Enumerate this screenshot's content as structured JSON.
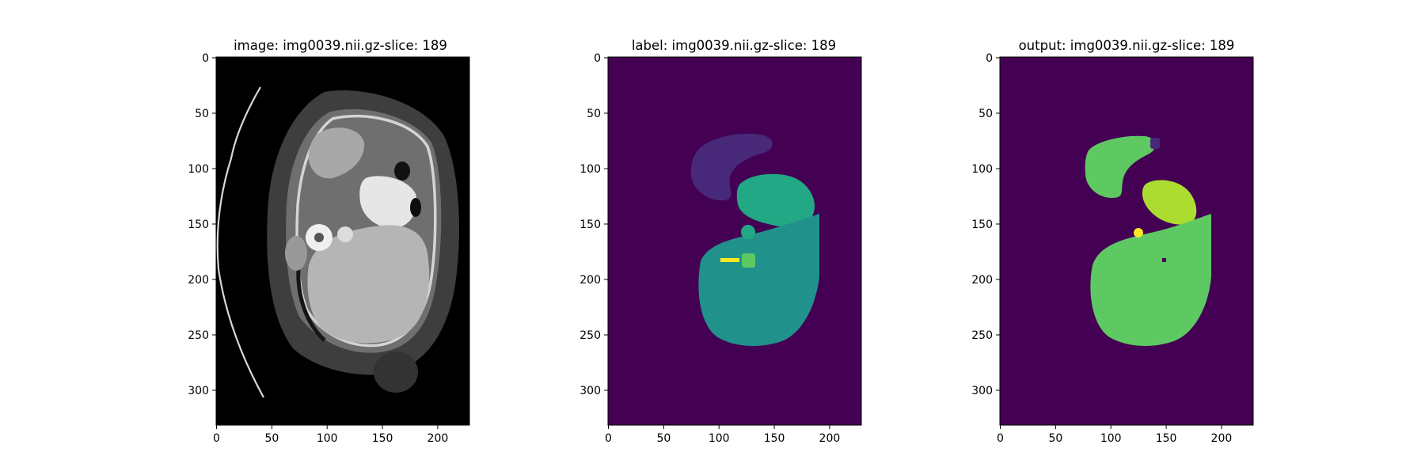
{
  "figure": {
    "panels": [
      {
        "id": "image",
        "title": "image: img0039.nii.gz-slice: 189",
        "background": "#000000",
        "x_ticks": [
          "0",
          "50",
          "100",
          "150",
          "200"
        ],
        "y_ticks": [
          "0",
          "50",
          "100",
          "150",
          "200",
          "250",
          "300"
        ]
      },
      {
        "id": "label",
        "title": "label: img0039.nii.gz-slice: 189",
        "background": "#440154",
        "x_ticks": [
          "0",
          "50",
          "100",
          "150",
          "200"
        ],
        "y_ticks": [
          "0",
          "50",
          "100",
          "150",
          "200",
          "250",
          "300"
        ]
      },
      {
        "id": "output",
        "title": "output: img0039.nii.gz-slice: 189",
        "background": "#440154",
        "x_ticks": [
          "0",
          "50",
          "100",
          "150",
          "200"
        ],
        "y_ticks": [
          "0",
          "50",
          "100",
          "150",
          "200",
          "250",
          "300"
        ]
      }
    ]
  },
  "chart_data": {
    "type": "heatmap",
    "image_width": 229,
    "image_height": 332,
    "xlim": [
      0,
      229
    ],
    "ylim": [
      332,
      0
    ],
    "x_ticks": [
      0,
      50,
      100,
      150,
      200
    ],
    "y_ticks": [
      0,
      50,
      100,
      150,
      200,
      250,
      300
    ],
    "colormap": "viridis",
    "colors": {
      "dark_purple": "#440154",
      "purple": "#482878",
      "teal": "#21918c",
      "green_teal": "#22a884",
      "green": "#5ec962",
      "yellow_green": "#addc30",
      "yellow": "#fde725"
    }
  }
}
